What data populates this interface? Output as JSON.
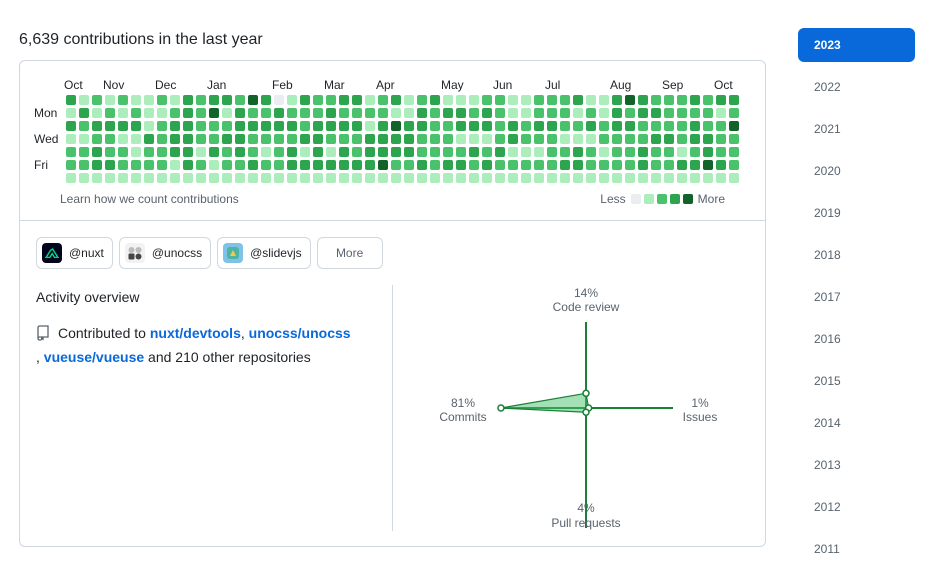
{
  "heading": "6,639 contributions in the last year",
  "calendar": {
    "months": [
      "Oct",
      "Nov",
      "Dec",
      "Jan",
      "Feb",
      "Mar",
      "Apr",
      "May",
      "Jun",
      "Jul",
      "Aug",
      "Sep",
      "Oct"
    ],
    "month_weeks": [
      0,
      3,
      7,
      11,
      16,
      20,
      24,
      29,
      33,
      37,
      42,
      46,
      50
    ],
    "days": [
      "Mon",
      "Wed",
      "Fri"
    ],
    "weeks": 53,
    "levels": [
      "3121211213233243013223312312311122112223113432223233",
      "1312121123241322322232222113233232112221213233222212",
      "3233331233222333332333313433223332323322323322223224",
      "1122113233223322223322233332221112322211122223323322",
      "2232212233132321231313233332222323111223212232212322",
      "2233222213212232233333334223233232222233222232233432",
      "1111111111111111111111111111111111111111111111111111"
    ],
    "colors": [
      "#ebedf0",
      "#aceebb",
      "#4ac26b",
      "#2da44e",
      "#116329"
    ],
    "learn_link": "Learn how we count contributions",
    "legend_less": "Less",
    "legend_more": "More"
  },
  "orgs": [
    {
      "label": "@nuxt",
      "icon": "nuxt-logo-icon",
      "color": "#020420"
    },
    {
      "label": "@unocss",
      "icon": "unocss-logo-icon",
      "color": "#f2f2f2"
    },
    {
      "label": "@slidevjs",
      "icon": "slidev-logo-icon",
      "color": "#7ec2e8"
    }
  ],
  "more_label": "More",
  "activity": {
    "title": "Activity overview",
    "prefix": "Contributed to ",
    "repo1": "nuxt/devtools",
    "sep1": ", ",
    "repo2": "unocss/unocss",
    "sep2": ", ",
    "repo3": "vueuse/vueuse",
    "suffix": " and 210 other repositories",
    "icon": "repo-icon"
  },
  "radar": {
    "code_review": {
      "pct": "14%",
      "label": "Code review",
      "value": 14
    },
    "issues": {
      "pct": "1%",
      "label": "Issues",
      "value": 1
    },
    "pull_requests": {
      "pct": "4%",
      "label": "Pull requests",
      "value": 4
    },
    "commits": {
      "pct": "81%",
      "label": "Commits",
      "value": 81
    },
    "color": "#1a7f37"
  },
  "years": [
    "2023",
    "2022",
    "2021",
    "2020",
    "2019",
    "2018",
    "2017",
    "2016",
    "2015",
    "2014",
    "2013",
    "2012",
    "2011"
  ],
  "active_year": "2023"
}
